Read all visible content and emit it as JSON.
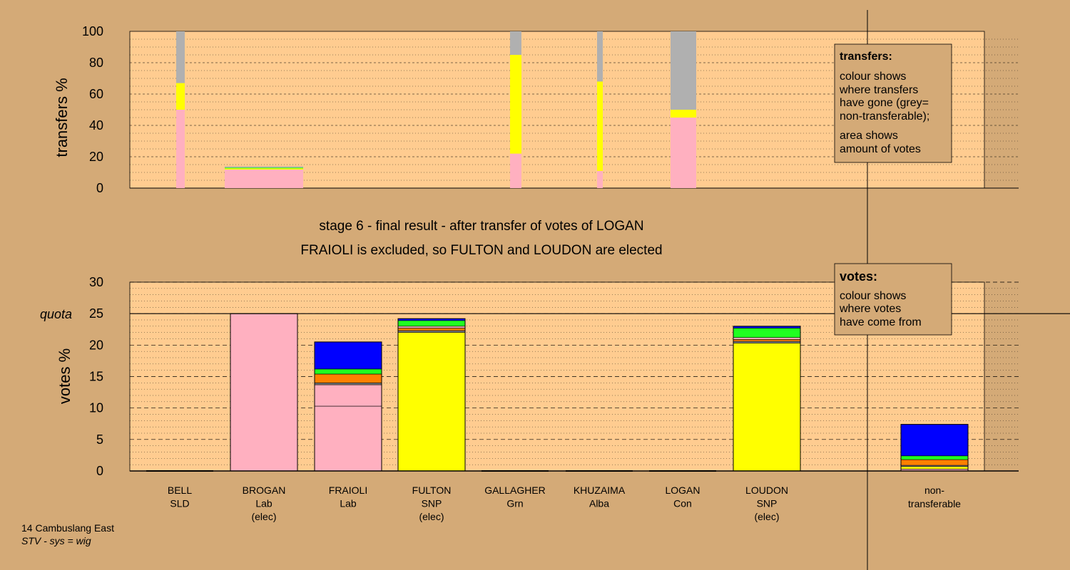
{
  "colors": {
    "background": "#d4aa77",
    "plot_bg": "#ffcc90",
    "Lab": "#ffb0c0",
    "SNP": "#ffff00",
    "Alba": "#808080",
    "Con": "#0000ff",
    "Grn": "#20ff20",
    "SLD": "#ff8000",
    "non_transferable": "#b0b0b0"
  },
  "headings": {
    "stage": "stage 6 - final result - after transfer of votes of LOGAN",
    "outcome": "FRAIOLI is excluded, so FULTON and LOUDON are elected"
  },
  "legend_transfers": {
    "title": "transfers:",
    "lines": [
      "colour shows",
      "where transfers",
      "have gone (grey=",
      "non-transferable);",
      "area shows",
      "amount of votes"
    ]
  },
  "legend_votes": {
    "title": "votes:",
    "lines": [
      "colour shows",
      "where votes",
      "have come from"
    ]
  },
  "footer": {
    "ward": "14 Cambuslang East",
    "system": "STV - sys = wig"
  },
  "chart_data": [
    {
      "type": "bar",
      "stacked": true,
      "ylabel": "transfers %",
      "ylim": [
        0,
        100
      ],
      "yticks": [
        0,
        20,
        40,
        60,
        80,
        100
      ],
      "grid": true,
      "legend_position": "right",
      "bars": [
        {
          "candidate": "BELL",
          "width_share": 0.3,
          "segments": [
            {
              "party": "Lab",
              "value": 50
            },
            {
              "party": "SNP",
              "value": 17
            },
            {
              "party": "non_transferable",
              "value": 33
            }
          ]
        },
        {
          "candidate": "BROGAN",
          "width_share": 3.4,
          "segments": [
            {
              "party": "Lab",
              "value": 11.8
            },
            {
              "party": "SNP",
              "value": 0.8
            },
            {
              "party": "Grn",
              "value": 0.5
            },
            {
              "party": "non_transferable",
              "value": 0.7
            }
          ]
        },
        {
          "candidate": "GALLAGHER",
          "width_share": 0.5,
          "segments": [
            {
              "party": "Lab",
              "value": 22
            },
            {
              "party": "SNP",
              "value": 63
            },
            {
              "party": "non_transferable",
              "value": 15
            }
          ]
        },
        {
          "candidate": "KHUZAIMA",
          "width_share": 0.25,
          "segments": [
            {
              "party": "Lab",
              "value": 11
            },
            {
              "party": "SNP",
              "value": 57
            },
            {
              "party": "non_transferable",
              "value": 32
            }
          ]
        },
        {
          "candidate": "LOGAN",
          "width_share": 1.1,
          "segments": [
            {
              "party": "Lab",
              "value": 45
            },
            {
              "party": "SNP",
              "value": 5
            },
            {
              "party": "non_transferable",
              "value": 50
            }
          ]
        }
      ]
    },
    {
      "type": "bar",
      "stacked": true,
      "ylabel": "votes %",
      "ylim": [
        0,
        30
      ],
      "yticks": [
        0,
        5,
        10,
        15,
        20,
        25,
        30
      ],
      "quota": 25,
      "quota_label": "quota",
      "grid": true,
      "legend_position": "right",
      "categories": [
        {
          "name": "BELL",
          "party": "SLD",
          "note": ""
        },
        {
          "name": "BROGAN",
          "party": "Lab",
          "note": "(elec)"
        },
        {
          "name": "FRAIOLI",
          "party": "Lab",
          "note": ""
        },
        {
          "name": "FULTON",
          "party": "SNP",
          "note": "(elec)"
        },
        {
          "name": "GALLAGHER",
          "party": "Grn",
          "note": ""
        },
        {
          "name": "KHUZAIMA",
          "party": "Alba",
          "note": ""
        },
        {
          "name": "LOGAN",
          "party": "Con",
          "note": ""
        },
        {
          "name": "LOUDON",
          "party": "SNP",
          "note": "(elec)"
        }
      ],
      "non_transferable_label": [
        "non-",
        "transferable"
      ],
      "stacks": [
        {
          "candidate": "BELL",
          "segments": []
        },
        {
          "candidate": "BROGAN",
          "segments": [
            {
              "party": "Lab",
              "value": 25.0
            }
          ]
        },
        {
          "candidate": "FRAIOLI",
          "segments": [
            {
              "party": "Lab",
              "value": 10.3
            },
            {
              "party": "Lab",
              "value": 3.4
            },
            {
              "party": "Alba",
              "value": 0.3
            },
            {
              "party": "SLD",
              "value": 1.4
            },
            {
              "party": "Grn",
              "value": 0.8
            },
            {
              "party": "Con",
              "value": 4.3
            }
          ]
        },
        {
          "candidate": "FULTON",
          "segments": [
            {
              "party": "SNP",
              "value": 22.0
            },
            {
              "party": "Alba",
              "value": 0.3
            },
            {
              "party": "SLD",
              "value": 0.4
            },
            {
              "party": "Lab",
              "value": 0.3
            },
            {
              "party": "Grn",
              "value": 0.9
            },
            {
              "party": "Con",
              "value": 0.3
            }
          ]
        },
        {
          "candidate": "GALLAGHER",
          "segments": []
        },
        {
          "candidate": "KHUZAIMA",
          "segments": []
        },
        {
          "candidate": "LOGAN",
          "segments": []
        },
        {
          "candidate": "LOUDON",
          "segments": [
            {
              "party": "SNP",
              "value": 20.3
            },
            {
              "party": "Alba",
              "value": 0.3
            },
            {
              "party": "SLD",
              "value": 0.3
            },
            {
              "party": "Lab",
              "value": 0.3
            },
            {
              "party": "Grn",
              "value": 1.5
            },
            {
              "party": "Con",
              "value": 0.3
            }
          ]
        },
        {
          "candidate": "non-transferable",
          "segments": [
            {
              "party": "Lab",
              "value": 0.3
            },
            {
              "party": "SNP",
              "value": 0.4
            },
            {
              "party": "Alba",
              "value": 0.2
            },
            {
              "party": "SLD",
              "value": 0.9
            },
            {
              "party": "Grn",
              "value": 0.6
            },
            {
              "party": "Con",
              "value": 5.0
            }
          ]
        }
      ]
    }
  ]
}
